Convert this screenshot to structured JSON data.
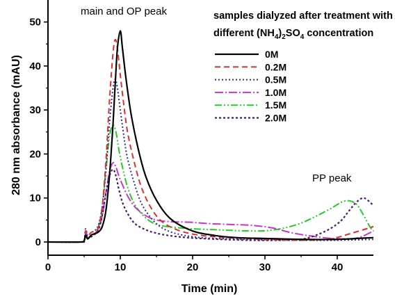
{
  "chart_data": {
    "type": "line",
    "title": "",
    "xlabel": "Time (min)",
    "ylabel": "280 nm absorbance (mAU)",
    "xlim": [
      0,
      45
    ],
    "ylim": [
      -3,
      55
    ],
    "xticks": [
      0,
      10,
      20,
      30,
      40
    ],
    "yticks": [
      0,
      10,
      20,
      30,
      40,
      50
    ],
    "x_tick_labels": [
      "0",
      "10",
      "20",
      "30",
      "40"
    ],
    "y_tick_labels": [
      "0",
      "10",
      "20",
      "30",
      "40",
      "50"
    ],
    "grid": false,
    "legend_position": "top-right",
    "legend_title_line1": "samples dialyzed after treatment with",
    "legend_title_line2_prefix": "different (NH",
    "legend_title_sub1": "4",
    "legend_title_mid": ")",
    "legend_title_sub2": "2",
    "legend_title_so": "SO",
    "legend_title_sub3": "4",
    "legend_title_suffix": " concentration",
    "annotations": [
      {
        "text": "main and OP peak",
        "x": 10,
        "y": 52
      },
      {
        "text": "PP peak",
        "x": 40,
        "y": 14
      }
    ],
    "series": [
      {
        "name": "0M",
        "color": "#000000",
        "dash": "",
        "width": 2.2,
        "x": [
          0,
          4.5,
          5.0,
          5.2,
          5.5,
          6.0,
          6.5,
          7.0,
          7.5,
          8.0,
          8.5,
          9.0,
          9.3,
          9.6,
          10.0,
          10.3,
          10.8,
          11.5,
          12.5,
          13.5,
          15.0,
          17.0,
          20.0,
          23.0,
          26.0,
          30.0,
          35.0,
          40.0,
          45.0
        ],
        "values": [
          0,
          0,
          0.3,
          1.5,
          0.7,
          1.6,
          1.9,
          2.3,
          3.5,
          7.0,
          15.0,
          27.0,
          36.0,
          44.0,
          48.0,
          44.0,
          37.0,
          29.0,
          21.0,
          15.0,
          9.5,
          5.2,
          2.5,
          1.5,
          1.0,
          0.8,
          0.6,
          0.6,
          1.0
        ]
      },
      {
        "name": "0.2M",
        "color": "#d93030",
        "dash": "8,5",
        "width": 2.0,
        "x": [
          0,
          4.5,
          5.0,
          5.2,
          5.5,
          6.0,
          6.5,
          7.0,
          7.5,
          8.0,
          8.5,
          9.0,
          9.3,
          9.6,
          10.0,
          10.5,
          11.0,
          11.8,
          12.8,
          14.0,
          15.5,
          17.5,
          20.0,
          23.0,
          26.0,
          30.0,
          35.0,
          39.0,
          42.0,
          45.0
        ],
        "values": [
          0,
          0,
          0.3,
          2.5,
          1.5,
          2.2,
          2.5,
          3.5,
          8.0,
          18.0,
          32.0,
          43.0,
          46.0,
          44.0,
          38.0,
          31.0,
          25.0,
          19.0,
          13.0,
          8.5,
          5.0,
          3.0,
          1.8,
          1.2,
          0.9,
          0.6,
          0.4,
          0.7,
          2.0,
          3.5
        ]
      },
      {
        "name": "0.5M",
        "color": "#2b2b99",
        "dash": "2,3",
        "width": 2.0,
        "x": [
          0,
          4.5,
          5.0,
          5.2,
          5.5,
          6.0,
          6.5,
          7.0,
          7.5,
          8.0,
          8.5,
          9.0,
          9.3,
          9.6,
          10.0,
          10.5,
          11.0,
          12.0,
          13.0,
          14.5,
          16.0,
          18.0,
          21.0,
          25.0,
          30.0,
          35.0,
          40.0,
          45.0
        ],
        "values": [
          0,
          0,
          0.3,
          3.0,
          1.5,
          2.2,
          2.6,
          4.0,
          8.0,
          16.0,
          27.0,
          35.0,
          37.0,
          35.0,
          30.0,
          24.0,
          19.0,
          13.0,
          8.5,
          5.0,
          3.0,
          1.8,
          1.0,
          0.7,
          0.5,
          0.4,
          0.4,
          0.6
        ]
      },
      {
        "name": "1.0M",
        "color": "#cc33cc",
        "dash": "12,3,2,3",
        "width": 2.0,
        "x": [
          0,
          4.5,
          5.0,
          5.2,
          5.5,
          6.0,
          6.5,
          7.0,
          7.5,
          8.0,
          8.5,
          9.0,
          9.4,
          9.8,
          10.3,
          11.0,
          12.0,
          13.5,
          15.0,
          17.0,
          19.5,
          22.0,
          25.0,
          28.0,
          31.0,
          34.0,
          38.0,
          41.0,
          43.0,
          45.0
        ],
        "values": [
          0,
          0,
          0.3,
          2.0,
          1.0,
          1.5,
          2.0,
          3.0,
          6.0,
          11.0,
          16.0,
          18.0,
          17.0,
          15.0,
          13.0,
          10.5,
          8.0,
          6.0,
          5.0,
          4.6,
          4.5,
          4.2,
          4.0,
          3.8,
          3.2,
          2.0,
          1.0,
          0.7,
          1.0,
          2.5
        ]
      },
      {
        "name": "1.5M",
        "color": "#22cc22",
        "dash": "10,3,2,3,2,3",
        "width": 2.0,
        "x": [
          0,
          4.5,
          5.0,
          5.2,
          5.5,
          6.0,
          6.5,
          7.0,
          7.5,
          8.0,
          8.5,
          9.0,
          9.4,
          9.8,
          10.3,
          11.0,
          12.0,
          13.5,
          15.0,
          17.0,
          20.0,
          23.0,
          26.0,
          29.0,
          31.0,
          33.0,
          35.0,
          37.0,
          39.0,
          41.0,
          42.5,
          43.5,
          44.5,
          45.0
        ],
        "values": [
          0,
          0,
          0.3,
          2.0,
          1.0,
          1.5,
          2.0,
          3.5,
          8.0,
          16.0,
          24.0,
          26.5,
          25.0,
          21.0,
          17.0,
          12.5,
          8.5,
          5.5,
          4.0,
          3.4,
          3.0,
          2.8,
          2.6,
          2.5,
          2.7,
          3.3,
          4.3,
          5.8,
          7.5,
          9.3,
          8.8,
          6.5,
          3.5,
          2.5
        ]
      },
      {
        "name": "2.0M",
        "color": "#4b1a6b",
        "dash": "3,3",
        "width": 2.2,
        "x": [
          0,
          4.5,
          5.0,
          5.2,
          5.5,
          6.0,
          6.5,
          7.0,
          7.5,
          8.0,
          8.5,
          9.0,
          9.4,
          9.8,
          10.3,
          11.0,
          12.0,
          13.5,
          15.0,
          17.0,
          20.0,
          24.0,
          28.0,
          32.0,
          35.0,
          37.0,
          39.0,
          40.5,
          41.5,
          42.5,
          43.5,
          44.2,
          45.0
        ],
        "values": [
          0,
          0,
          0.3,
          1.5,
          0.8,
          1.2,
          1.8,
          2.8,
          6.0,
          11.0,
          15.0,
          16.5,
          15.0,
          12.0,
          9.0,
          6.5,
          4.2,
          2.8,
          2.0,
          1.4,
          0.9,
          0.6,
          0.4,
          0.4,
          0.6,
          1.5,
          3.0,
          4.8,
          6.8,
          8.8,
          10.0,
          9.5,
          8.3
        ]
      }
    ]
  }
}
